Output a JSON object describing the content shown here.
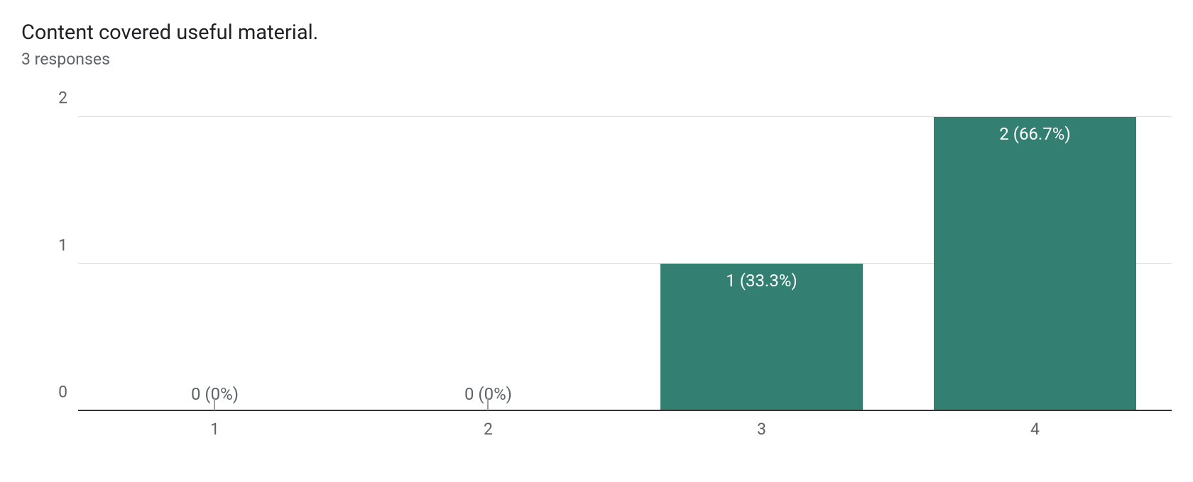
{
  "header": {
    "title": "Content covered useful material.",
    "subtitle": "3 responses"
  },
  "chart": {
    "type": "bar",
    "categories": [
      "1",
      "2",
      "3",
      "4"
    ],
    "values": [
      0,
      0,
      1,
      2
    ],
    "bar_labels": [
      "0 (0%)",
      "0 (0%)",
      "1 (33.3%)",
      "2 (66.7%)"
    ],
    "bar_color": "#337f72",
    "bg_color": "#ffffff",
    "grid_color": "#e0e0e0",
    "axis_color": "#333333",
    "text_color": "#5f6368",
    "inside_label_color": "#ffffff",
    "title_color": "#202124",
    "ylim": [
      0,
      2
    ],
    "yticks": [
      0,
      1,
      2
    ],
    "bar_width_ratio": 0.74,
    "title_fontsize": 29,
    "subtitle_fontsize": 23,
    "tick_fontsize": 23,
    "label_fontsize": 24
  }
}
